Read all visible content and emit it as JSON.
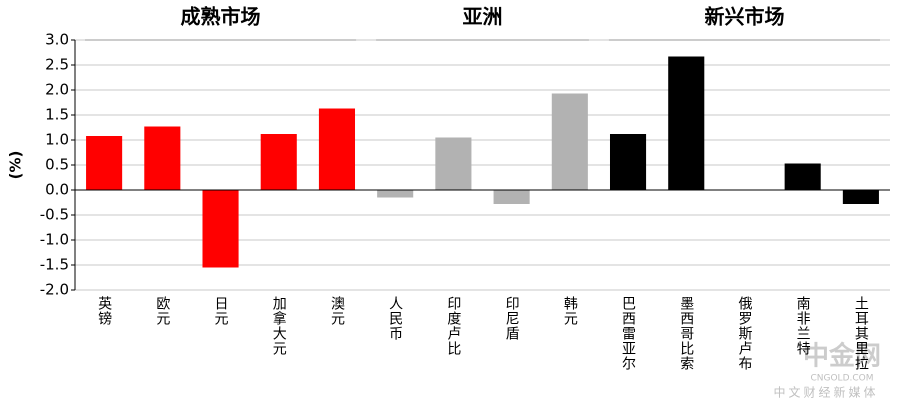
{
  "chart_data": {
    "type": "bar",
    "y_label": "(%)",
    "groups": [
      {
        "name": "成熟市场",
        "color": "#ff0000",
        "categories": [
          "英镑",
          "欧元",
          "日元",
          "加拿大元",
          "澳元"
        ],
        "values": [
          1.08,
          1.27,
          -1.55,
          1.12,
          1.63
        ]
      },
      {
        "name": "亚洲",
        "color": "#b2b2b2",
        "categories": [
          "人民币",
          "印度卢比",
          "印尼盾",
          "韩元"
        ],
        "values": [
          -0.15,
          1.05,
          -0.28,
          1.93
        ]
      },
      {
        "name": "新兴市场",
        "color": "#000000",
        "categories": [
          "巴西雷亚尔",
          "墨西哥比索",
          "俄罗斯卢布",
          "南非兰特",
          "土耳其里拉"
        ],
        "values": [
          1.12,
          2.67,
          0,
          0.53,
          -0.28
        ]
      }
    ],
    "ylim": [
      -2,
      3
    ],
    "yticks": [
      {
        "value": -2,
        "label": "-2.0"
      },
      {
        "value": -1.5,
        "label": "-1.5"
      },
      {
        "value": -1,
        "label": "-1.0"
      },
      {
        "value": -0.5,
        "label": "-0.5"
      },
      {
        "value": 0,
        "label": "0.0"
      },
      {
        "value": 0.5,
        "label": "0.5"
      },
      {
        "value": 1,
        "label": "1.0"
      },
      {
        "value": 1.5,
        "label": "1.5"
      },
      {
        "value": 2,
        "label": "2.0"
      },
      {
        "value": 2.5,
        "label": "2.5"
      },
      {
        "value": 3,
        "label": "3.0"
      }
    ],
    "grid": true
  },
  "watermark": {
    "brand": "中金网",
    "site": "CNGOLD.COM",
    "slogan": "中文财经新媒体"
  }
}
